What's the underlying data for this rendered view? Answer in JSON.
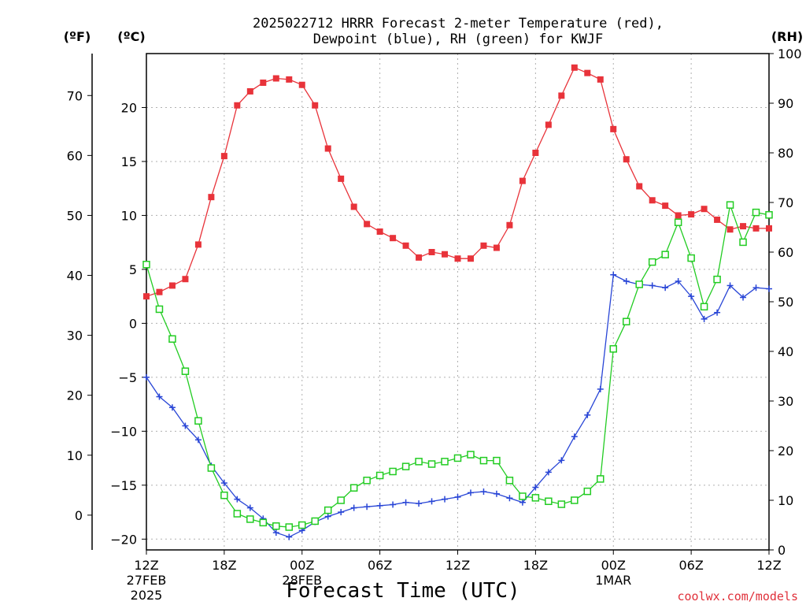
{
  "chart_data": {
    "type": "line",
    "title_line1": "2025022712 HRRR Forecast 2-meter Temperature (red),",
    "title_line2": "Dewpoint (blue), RH (green) for KWJF",
    "xlabel": "Forecast Time (UTC)",
    "credit": "coolwx.com/models",
    "unit_f": "(ºF)",
    "unit_c": "(ºC)",
    "unit_rh": "(RH)",
    "x_hours": [
      0,
      1,
      2,
      3,
      4,
      5,
      6,
      7,
      8,
      9,
      10,
      11,
      12,
      13,
      14,
      15,
      16,
      17,
      18,
      19,
      20,
      21,
      22,
      23,
      24,
      25,
      26,
      27,
      28,
      29,
      30,
      31,
      32,
      33,
      34,
      35,
      36,
      37,
      38,
      39,
      40,
      41,
      42,
      43,
      44,
      45,
      46,
      47,
      48
    ],
    "xlim": [
      0,
      48
    ],
    "x_ticks": [
      {
        "hour": 0,
        "label": "12Z",
        "date": "27FEB",
        "year": "2025"
      },
      {
        "hour": 6,
        "label": "18Z",
        "date": "",
        "year": ""
      },
      {
        "hour": 12,
        "label": "00Z",
        "date": "28FEB",
        "year": ""
      },
      {
        "hour": 18,
        "label": "06Z",
        "date": "",
        "year": ""
      },
      {
        "hour": 24,
        "label": "12Z",
        "date": "",
        "year": ""
      },
      {
        "hour": 30,
        "label": "18Z",
        "date": "",
        "year": ""
      },
      {
        "hour": 36,
        "label": "00Z",
        "date": "1MAR",
        "year": ""
      },
      {
        "hour": 42,
        "label": "06Z",
        "date": "",
        "year": ""
      },
      {
        "hour": 48,
        "label": "12Z",
        "date": "",
        "year": ""
      }
    ],
    "c_axis": {
      "ylim": [
        -21,
        25
      ],
      "ticks": [
        -20,
        -15,
        -10,
        -5,
        0,
        5,
        10,
        15,
        20
      ]
    },
    "f_axis": {
      "ticks": [
        0,
        10,
        20,
        30,
        40,
        50,
        60,
        70
      ]
    },
    "rh_axis": {
      "ylim": [
        0,
        100
      ],
      "ticks": [
        0,
        10,
        20,
        30,
        40,
        50,
        60,
        70,
        80,
        90,
        100
      ]
    },
    "grid": true,
    "series": [
      {
        "name": "Temperature",
        "unit": "C",
        "color": "#e8333a",
        "marker": "filled-square",
        "values": [
          2.5,
          2.9,
          3.5,
          4.1,
          7.3,
          11.7,
          15.5,
          20.2,
          21.5,
          22.3,
          22.7,
          22.6,
          22.1,
          20.2,
          16.2,
          13.4,
          10.8,
          9.2,
          8.5,
          7.9,
          7.2,
          6.1,
          6.6,
          6.4,
          6.0,
          6.0,
          7.2,
          7.0,
          9.1,
          13.2,
          15.8,
          18.4,
          21.1,
          23.7,
          23.2,
          22.6,
          18.0,
          15.2,
          12.7,
          11.4,
          10.9,
          10.0,
          10.1,
          10.6,
          9.6,
          8.7,
          9.0,
          8.8,
          8.8
        ]
      },
      {
        "name": "Dewpoint",
        "unit": "C",
        "color": "#2845d6",
        "marker": "plus",
        "values": [
          -5.0,
          -6.8,
          -7.8,
          -9.5,
          -10.8,
          -13.2,
          -14.8,
          -16.3,
          -17.1,
          -18.1,
          -19.4,
          -19.8,
          -19.2,
          -18.4,
          -17.9,
          -17.5,
          -17.1,
          -17.0,
          -16.9,
          -16.8,
          -16.6,
          -16.7,
          -16.5,
          -16.3,
          -16.1,
          -15.7,
          -15.6,
          -15.8,
          -16.2,
          -16.6,
          -15.2,
          -13.8,
          -12.7,
          -10.5,
          -8.5,
          -6.1,
          4.5,
          3.9,
          3.6,
          3.5,
          3.3,
          3.9,
          2.5,
          0.4,
          1.0,
          3.5,
          2.4,
          3.3,
          3.2
        ]
      },
      {
        "name": "RH",
        "unit": "%",
        "color": "#22cc22",
        "marker": "open-square",
        "values": [
          57.5,
          48.5,
          42.5,
          36.0,
          26.0,
          16.5,
          11.0,
          7.3,
          6.2,
          5.5,
          4.8,
          4.6,
          5.0,
          5.8,
          8.0,
          10.0,
          12.5,
          14.0,
          15.0,
          15.8,
          16.8,
          17.8,
          17.3,
          17.8,
          18.5,
          19.2,
          18.0,
          18.0,
          14.0,
          10.8,
          10.5,
          9.8,
          9.2,
          10.0,
          11.8,
          14.3,
          40.5,
          46.0,
          53.5,
          58.0,
          59.5,
          66.0,
          58.8,
          49.0,
          54.5,
          69.5,
          62.0,
          68.0,
          67.5
        ]
      }
    ]
  }
}
